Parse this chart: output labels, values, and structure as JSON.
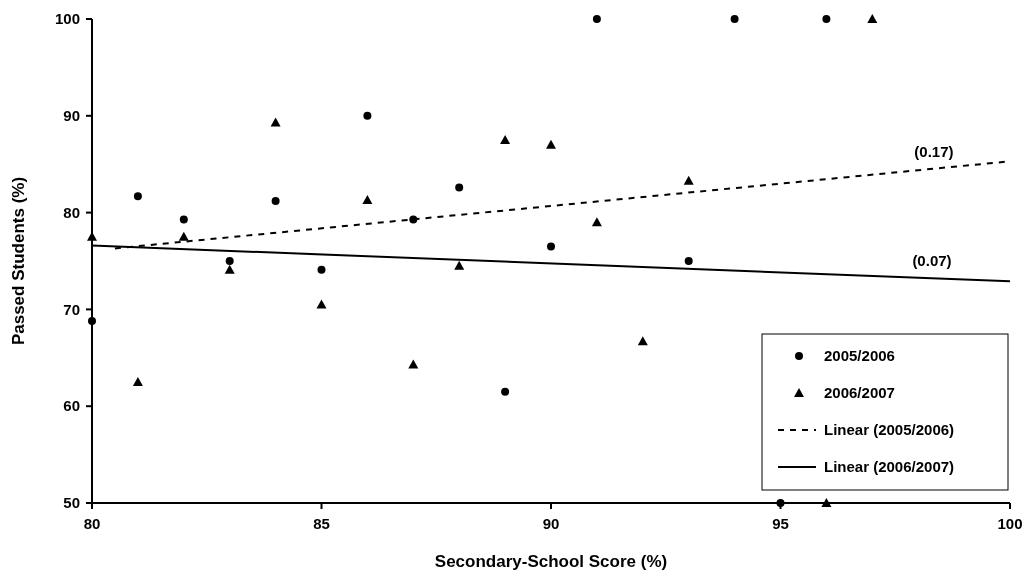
{
  "chart_data": {
    "type": "scatter",
    "xlabel": "Secondary-School Score (%)",
    "ylabel": "Passed Students (%)",
    "xlim": [
      80,
      100
    ],
    "xticks": [
      80,
      85,
      90,
      95,
      100
    ],
    "ylim": [
      50,
      100
    ],
    "yticks": [
      50,
      60,
      70,
      80,
      90,
      100
    ],
    "grid": false,
    "legend": "bottom right",
    "series": [
      {
        "name": "2005/2006",
        "color": "#000000",
        "marker": "circle",
        "x": [
          80,
          81,
          82,
          83,
          84,
          85,
          86,
          87,
          88,
          89,
          90,
          91,
          93,
          94,
          95,
          96
        ],
        "values": [
          68.8,
          81.7,
          79.3,
          75,
          81.2,
          74.1,
          90,
          79.3,
          82.6,
          61.5,
          76.5,
          100,
          75,
          100,
          50,
          100
        ]
      },
      {
        "name": "2006/2007",
        "color": "#000000",
        "marker": "triangle",
        "x": [
          80,
          81,
          82,
          83,
          84,
          85,
          86,
          87,
          88,
          89,
          90,
          91,
          92,
          93,
          96,
          97
        ],
        "values": [
          77.5,
          62.5,
          77.5,
          74.1,
          89.3,
          70.5,
          81.3,
          64.3,
          74.5,
          87.5,
          87,
          79,
          66.7,
          83.3,
          50,
          100
        ]
      },
      {
        "name": "Linear (2005/2006)",
        "type": "line",
        "color": "#000000",
        "marker": "none",
        "line_style": "dashed",
        "x": [
          80.5,
          100
        ],
        "values": [
          76.3,
          85.3
        ]
      },
      {
        "name": "Linear (2006/2007)",
        "type": "line",
        "color": "#000000",
        "marker": "none",
        "line_style": "solid",
        "x": [
          80,
          100
        ],
        "values": [
          76.6,
          72.9
        ]
      }
    ],
    "annotations": [
      "(0.17)",
      "(0.07)"
    ]
  }
}
